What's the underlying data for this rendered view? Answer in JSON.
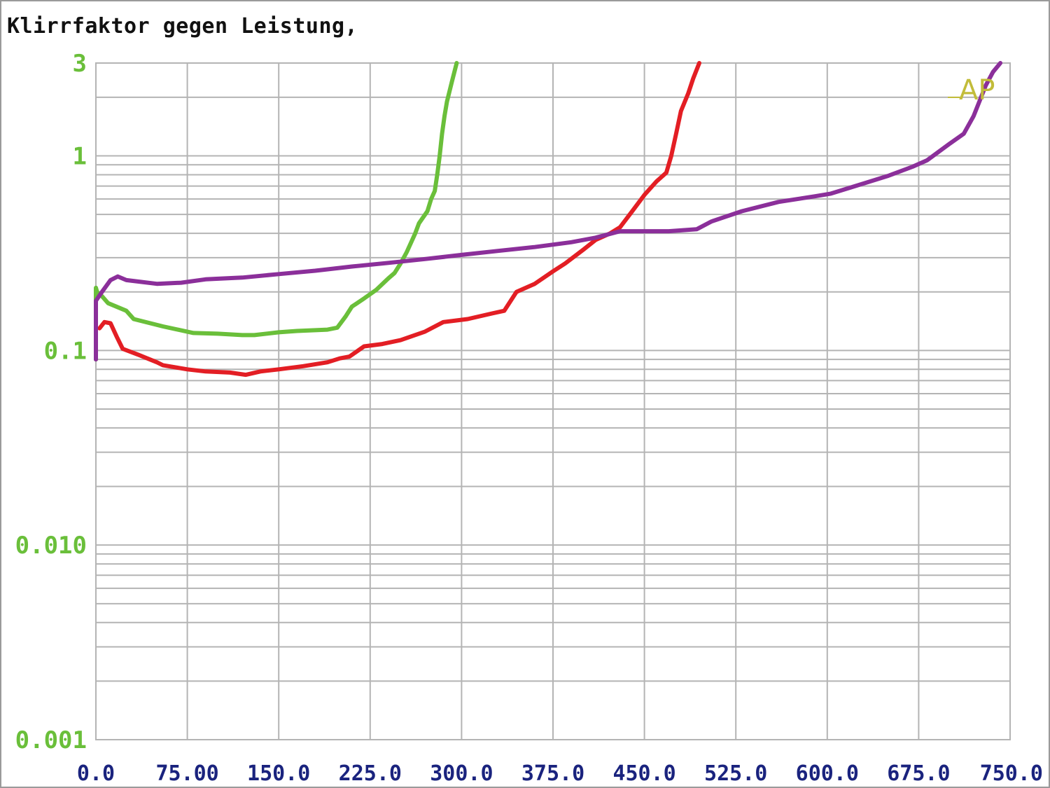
{
  "chart_data": {
    "type": "line",
    "title": "Klirrfaktor gegen Leistung,",
    "xlabel": "",
    "ylabel": "",
    "xlim": [
      0,
      750
    ],
    "ylim": [
      0.001,
      3
    ],
    "y_scale": "log",
    "grid": true,
    "x_tick_labels": [
      "0.0",
      "75.00",
      "150.0",
      "225.0",
      "300.0",
      "375.0",
      "450.0",
      "525.0",
      "600.0",
      "675.0",
      "750.0"
    ],
    "x_tick_values": [
      0,
      75,
      150,
      225,
      300,
      375,
      450,
      525,
      600,
      675,
      750
    ],
    "y_tick_labels": [
      "3",
      "1",
      "0.1",
      "0.010",
      "0.001"
    ],
    "y_tick_values": [
      3,
      1,
      0.1,
      0.01,
      0.001
    ],
    "logo_text": "AP",
    "colors": {
      "axis_x_labels": "#1a237e",
      "axis_y_labels": "#6abf3a",
      "grid": "#b4b4b4",
      "logo": "#c2bc3a"
    },
    "series": [
      {
        "color": "#6abf3a",
        "points": [
          [
            0,
            0.09
          ],
          [
            0,
            0.21
          ],
          [
            1,
            0.2
          ],
          [
            5,
            0.19
          ],
          [
            10,
            0.175
          ],
          [
            25,
            0.16
          ],
          [
            31,
            0.145
          ],
          [
            55,
            0.133
          ],
          [
            80,
            0.123
          ],
          [
            100,
            0.122
          ],
          [
            120,
            0.12
          ],
          [
            130,
            0.12
          ],
          [
            150,
            0.124
          ],
          [
            165,
            0.126
          ],
          [
            190,
            0.128
          ],
          [
            198,
            0.131
          ],
          [
            205,
            0.15
          ],
          [
            210,
            0.168
          ],
          [
            220,
            0.185
          ],
          [
            230,
            0.205
          ],
          [
            240,
            0.235
          ],
          [
            245,
            0.25
          ],
          [
            250,
            0.28
          ],
          [
            255,
            0.32
          ],
          [
            262,
            0.4
          ],
          [
            265,
            0.45
          ],
          [
            272,
            0.52
          ],
          [
            275,
            0.6
          ],
          [
            278,
            0.66
          ],
          [
            280,
            0.8
          ],
          [
            282,
            1.0
          ],
          [
            284,
            1.3
          ],
          [
            286,
            1.6
          ],
          [
            288,
            1.9
          ],
          [
            292,
            2.4
          ],
          [
            296,
            3.0
          ]
        ]
      },
      {
        "color": "#e31e24",
        "points": [
          [
            3,
            0.13
          ],
          [
            7,
            0.14
          ],
          [
            12,
            0.138
          ],
          [
            17,
            0.118
          ],
          [
            22,
            0.102
          ],
          [
            35,
            0.095
          ],
          [
            50,
            0.087
          ],
          [
            55,
            0.084
          ],
          [
            75,
            0.08
          ],
          [
            90,
            0.078
          ],
          [
            110,
            0.077
          ],
          [
            123,
            0.075
          ],
          [
            135,
            0.078
          ],
          [
            150,
            0.08
          ],
          [
            170,
            0.083
          ],
          [
            190,
            0.087
          ],
          [
            200,
            0.091
          ],
          [
            208,
            0.093
          ],
          [
            220,
            0.105
          ],
          [
            235,
            0.108
          ],
          [
            250,
            0.113
          ],
          [
            270,
            0.125
          ],
          [
            285,
            0.14
          ],
          [
            305,
            0.145
          ],
          [
            325,
            0.155
          ],
          [
            335,
            0.16
          ],
          [
            345,
            0.2
          ],
          [
            360,
            0.22
          ],
          [
            375,
            0.255
          ],
          [
            385,
            0.28
          ],
          [
            400,
            0.33
          ],
          [
            410,
            0.37
          ],
          [
            422,
            0.4
          ],
          [
            430,
            0.43
          ],
          [
            440,
            0.52
          ],
          [
            450,
            0.63
          ],
          [
            460,
            0.74
          ],
          [
            468,
            0.82
          ],
          [
            472,
            1.0
          ],
          [
            476,
            1.3
          ],
          [
            480,
            1.7
          ],
          [
            486,
            2.1
          ],
          [
            490,
            2.5
          ],
          [
            495,
            3.0
          ]
        ]
      },
      {
        "color": "#8b2f9a",
        "points": [
          [
            0,
            0.09
          ],
          [
            0,
            0.18
          ],
          [
            5,
            0.2
          ],
          [
            12,
            0.23
          ],
          [
            18,
            0.24
          ],
          [
            25,
            0.23
          ],
          [
            50,
            0.22
          ],
          [
            70,
            0.223
          ],
          [
            90,
            0.232
          ],
          [
            120,
            0.237
          ],
          [
            150,
            0.247
          ],
          [
            180,
            0.257
          ],
          [
            210,
            0.27
          ],
          [
            240,
            0.282
          ],
          [
            270,
            0.295
          ],
          [
            300,
            0.31
          ],
          [
            330,
            0.325
          ],
          [
            360,
            0.34
          ],
          [
            390,
            0.36
          ],
          [
            410,
            0.38
          ],
          [
            430,
            0.41
          ],
          [
            450,
            0.41
          ],
          [
            470,
            0.41
          ],
          [
            493,
            0.42
          ],
          [
            505,
            0.46
          ],
          [
            530,
            0.52
          ],
          [
            560,
            0.58
          ],
          [
            590,
            0.62
          ],
          [
            603,
            0.64
          ],
          [
            620,
            0.69
          ],
          [
            650,
            0.79
          ],
          [
            670,
            0.88
          ],
          [
            682,
            0.95
          ],
          [
            700,
            1.15
          ],
          [
            712,
            1.3
          ],
          [
            720,
            1.6
          ],
          [
            730,
            2.3
          ],
          [
            736,
            2.7
          ],
          [
            742,
            3.0
          ]
        ]
      }
    ]
  }
}
